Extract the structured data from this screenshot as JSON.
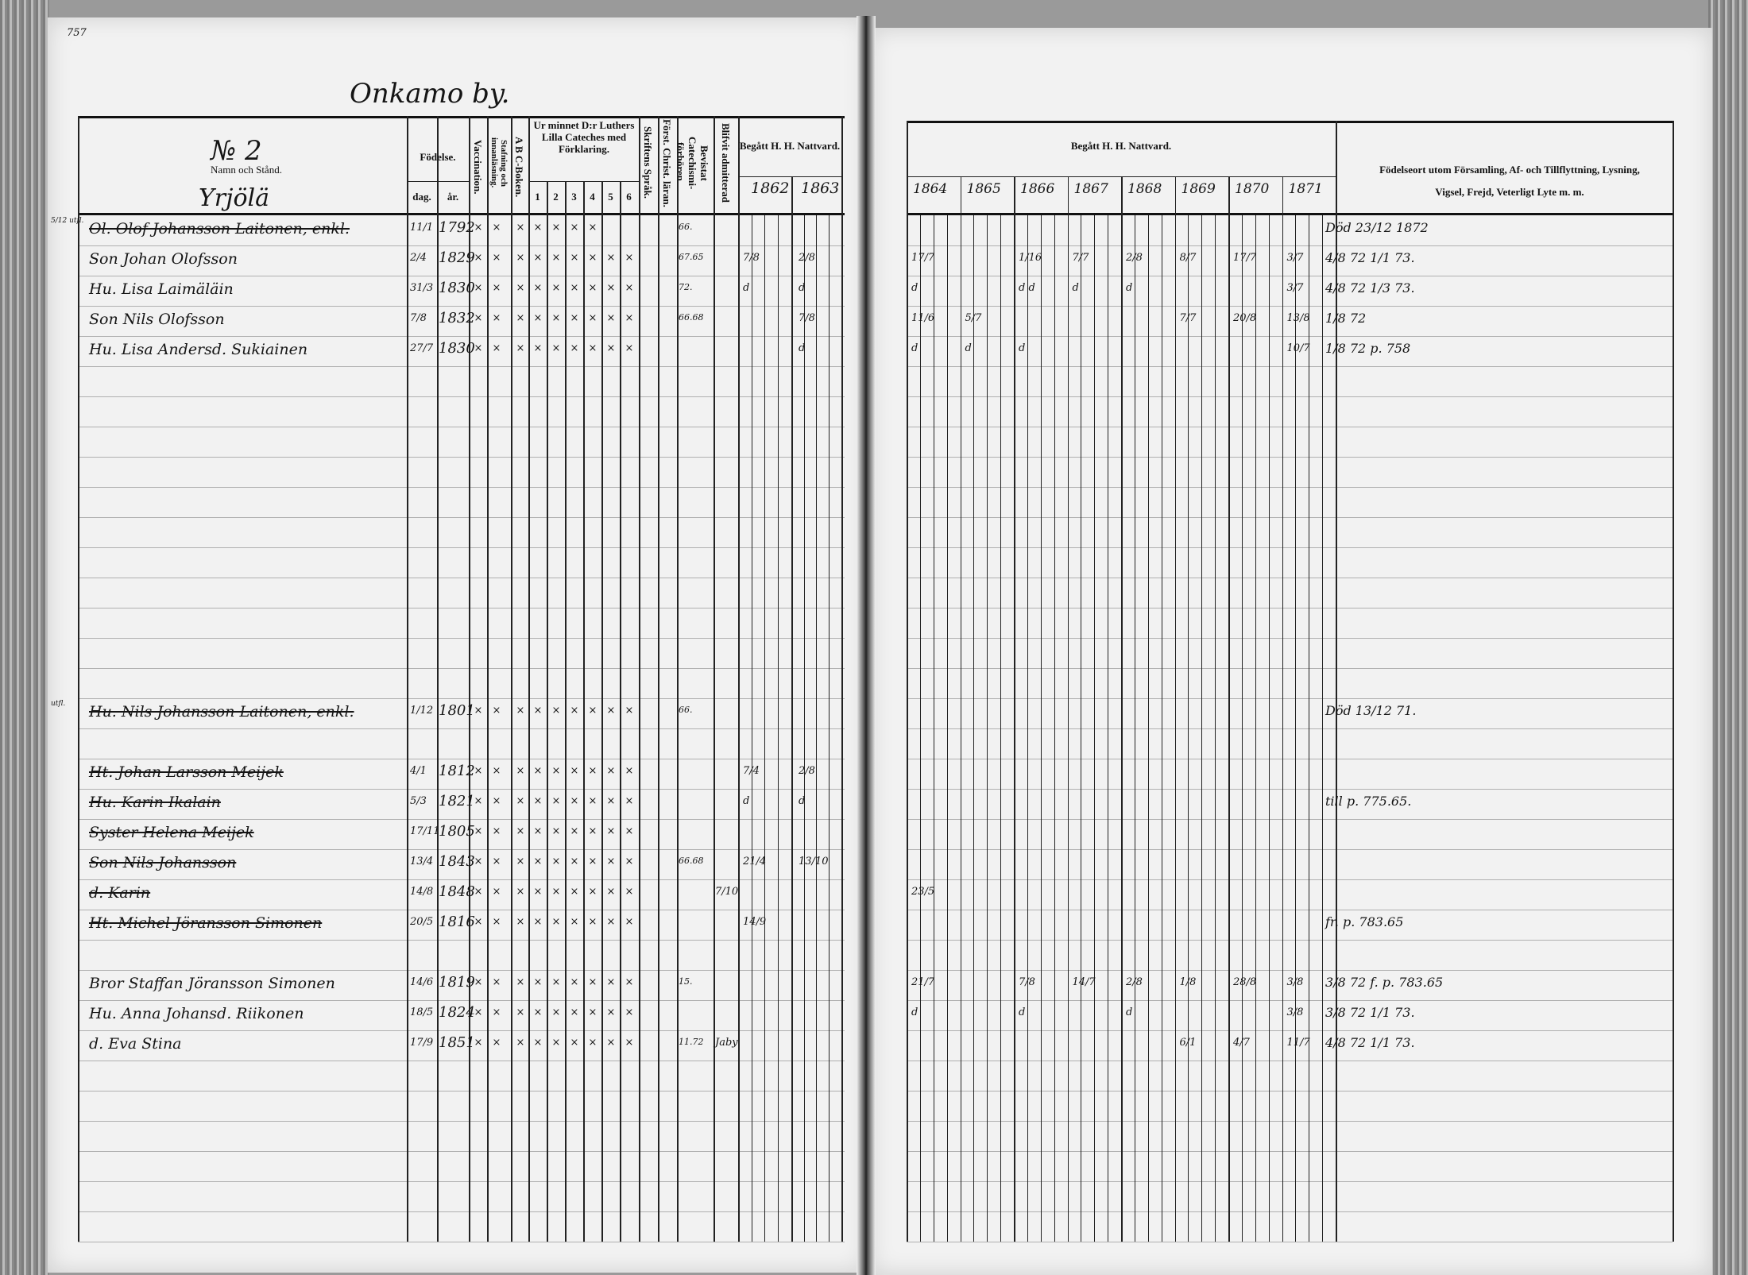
{
  "page_number": "757",
  "village_title": "Onkamo by.",
  "left_page": {
    "household_no": "№ 2",
    "farm_name": "Yrjölä",
    "headers": {
      "name": "Namn och Stånd.",
      "birth": "Födelse.",
      "birth_day": "dag.",
      "birth_year": "år.",
      "vaccination": "Vaccination.",
      "spelling": "Stafning och innanläsning.",
      "abc": "A B C-Boken.",
      "catechism": "Ur minnet D:r Luthers Lilla Cateches med Förklaring.",
      "catechism_parts": [
        "1",
        "2",
        "3",
        "4",
        "5",
        "6"
      ],
      "scripture": "Skriftens Språk.",
      "first_christ": "Först. Christ. läran.",
      "attended": "Bevistat Catechismi-förhören.",
      "admitted": "Blifvit admitterad",
      "communion": "Begått H. H. Nattvard.",
      "years": [
        "1862",
        "1863"
      ]
    },
    "rows": [
      {
        "row": 0,
        "name": "Ol. Olof Johansson Laitonen, enkl.",
        "struck": true,
        "day": "11/1",
        "year": "1792",
        "marks": "×××××××",
        "attended": "66.",
        "c1862": "",
        "c1863": "",
        "margin": "5/12 utfl."
      },
      {
        "row": 1,
        "name": "Son Johan Olofsson",
        "struck": false,
        "day": "2/4",
        "year": "1829",
        "marks": "×××××××××",
        "attended": "67.65",
        "c1862": "7/8",
        "c1863": "2/8",
        "margin": ""
      },
      {
        "row": 2,
        "name": "Hu. Lisa Laimäläin",
        "struck": false,
        "day": "31/3",
        "year": "1830",
        "marks": "×××××××××",
        "attended": "72.",
        "c1862": "d",
        "c1863": "d",
        "margin": ""
      },
      {
        "row": 3,
        "name": "Son Nils Olofsson",
        "struck": false,
        "day": "7/8",
        "year": "1832",
        "marks": "×××××××××",
        "attended": "66.68",
        "c1862": "",
        "c1863": "7/8",
        "margin": ""
      },
      {
        "row": 4,
        "name": "Hu. Lisa Andersd. Sukiainen",
        "struck": false,
        "day": "27/7",
        "year": "1830",
        "marks": "×××××××××",
        "attended": "",
        "c1862": "",
        "c1863": "d",
        "margin": ""
      },
      {
        "row": 16,
        "name": "Hu. Nils Johansson Laitonen, enkl.",
        "struck": true,
        "day": "1/12",
        "year": "1801",
        "marks": "×××××××××",
        "attended": "66.",
        "c1862": "",
        "c1863": "",
        "margin": "utfl."
      },
      {
        "row": 18,
        "name": "Ht. Johan Larsson Meijek",
        "struck": true,
        "day": "4/1",
        "year": "1812",
        "marks": "×××××××××",
        "attended": "",
        "c1862": "7/4",
        "c1863": "2/8",
        "margin": ""
      },
      {
        "row": 19,
        "name": "Hu. Karin Ikalain",
        "struck": true,
        "day": "5/3",
        "year": "1821",
        "marks": "×××××××××",
        "attended": "",
        "c1862": "d",
        "c1863": "d",
        "margin": ""
      },
      {
        "row": 20,
        "name": "Syster Helena Meijek",
        "struck": true,
        "day": "17/11",
        "year": "1805",
        "marks": "×××××××××",
        "attended": "",
        "c1862": "",
        "c1863": "",
        "margin": ""
      },
      {
        "row": 21,
        "name": "Son Nils Johansson",
        "struck": true,
        "day": "13/4",
        "year": "1843",
        "marks": "×××××××××",
        "attended": "66.68",
        "c1862": "21/4",
        "c1863": "13/10",
        "margin": ""
      },
      {
        "row": 22,
        "name": "d. Karin",
        "struck": true,
        "day": "14/8",
        "year": "1848",
        "marks": "×××××××××",
        "attended": "",
        "c1862": "",
        "c1863": "",
        "admitted": "7/10",
        "margin": ""
      },
      {
        "row": 23,
        "name": "Ht. Michel Jöransson Simonen",
        "struck": true,
        "day": "20/5",
        "year": "1816",
        "marks": "×××××××××",
        "attended": "",
        "c1862": "14/9",
        "c1863": "",
        "margin": ""
      },
      {
        "row": 25,
        "name": "Bror Staffan Jöransson Simonen",
        "struck": false,
        "day": "14/6",
        "year": "1819",
        "marks": "×××××××××",
        "attended": "15.",
        "c1862": "",
        "c1863": "",
        "margin": ""
      },
      {
        "row": 26,
        "name": "Hu. Anna Johansd. Riikonen",
        "struck": false,
        "day": "18/5",
        "year": "1824",
        "marks": "×××××××××",
        "attended": "",
        "c1862": "",
        "c1863": "",
        "margin": ""
      },
      {
        "row": 27,
        "name": "d. Eva Stina",
        "struck": false,
        "day": "17/9",
        "year": "1851",
        "marks": "×××××××××",
        "attended": "11.72",
        "c1862": "",
        "c1863": "",
        "admitted": "Jaby",
        "margin": ""
      }
    ]
  },
  "right_page": {
    "headers": {
      "communion": "Begått H. H. Nattvard.",
      "years": [
        "1864",
        "1865",
        "1866",
        "1867",
        "1868",
        "1869",
        "1870",
        "1871"
      ],
      "notes": "Födelseort utom Församling, Af- och Tillflyttning, Lysning, Vigsel, Frejd, Veterligt Lyte m. m."
    },
    "entries": [
      {
        "row": 1,
        "year": 0,
        "text": "17/7"
      },
      {
        "row": 1,
        "year": 2,
        "text": "1/16"
      },
      {
        "row": 1,
        "year": 3,
        "text": "7/7"
      },
      {
        "row": 1,
        "year": 4,
        "text": "2/8"
      },
      {
        "row": 1,
        "year": 5,
        "text": "8/7"
      },
      {
        "row": 1,
        "year": 6,
        "text": "17/7"
      },
      {
        "row": 1,
        "year": 7,
        "text": "3/7"
      },
      {
        "row": 2,
        "year": 0,
        "text": "d"
      },
      {
        "row": 2,
        "year": 2,
        "text": "d d"
      },
      {
        "row": 2,
        "year": 3,
        "text": "d"
      },
      {
        "row": 2,
        "year": 4,
        "text": "d"
      },
      {
        "row": 2,
        "year": 7,
        "text": "3/7"
      },
      {
        "row": 3,
        "year": 0,
        "text": "11/6"
      },
      {
        "row": 3,
        "year": 1,
        "text": "5/7"
      },
      {
        "row": 3,
        "year": 5,
        "text": "7/7"
      },
      {
        "row": 3,
        "year": 6,
        "text": "20/8"
      },
      {
        "row": 3,
        "year": 7,
        "text": "13/8"
      },
      {
        "row": 4,
        "year": 0,
        "text": "d"
      },
      {
        "row": 4,
        "year": 1,
        "text": "d"
      },
      {
        "row": 4,
        "year": 2,
        "text": "d"
      },
      {
        "row": 4,
        "year": 7,
        "text": "10/7"
      },
      {
        "row": 22,
        "year": 0,
        "text": "23/5"
      },
      {
        "row": 25,
        "year": 0,
        "text": "21/7"
      },
      {
        "row": 25,
        "year": 2,
        "text": "7/8"
      },
      {
        "row": 25,
        "year": 3,
        "text": "14/7"
      },
      {
        "row": 25,
        "year": 4,
        "text": "2/8"
      },
      {
        "row": 25,
        "year": 5,
        "text": "1/8"
      },
      {
        "row": 25,
        "year": 6,
        "text": "28/8"
      },
      {
        "row": 25,
        "year": 7,
        "text": "3/8"
      },
      {
        "row": 26,
        "year": 0,
        "text": "d"
      },
      {
        "row": 26,
        "year": 2,
        "text": "d"
      },
      {
        "row": 26,
        "year": 4,
        "text": "d"
      },
      {
        "row": 26,
        "year": 7,
        "text": "3/8"
      },
      {
        "row": 27,
        "year": 5,
        "text": "6/1"
      },
      {
        "row": 27,
        "year": 6,
        "text": "4/7"
      },
      {
        "row": 27,
        "year": 7,
        "text": "11/7"
      }
    ],
    "notes": [
      {
        "row": 0,
        "text": "Död 23/12 1872"
      },
      {
        "row": 1,
        "text": "4/8 72  1/1 73."
      },
      {
        "row": 2,
        "text": "4/8 72  1/3 73."
      },
      {
        "row": 3,
        "text": "1/8 72"
      },
      {
        "row": 4,
        "text": "1/8 72 p. 758"
      },
      {
        "row": 16,
        "text": "Död 13/12 71."
      },
      {
        "row": 19,
        "text": "till p. 775.65."
      },
      {
        "row": 23,
        "text": "fr. p. 783.65"
      },
      {
        "row": 25,
        "text": "3/8 72  f. p. 783.65"
      },
      {
        "row": 26,
        "text": "3/8 72  1/1 73."
      },
      {
        "row": 27,
        "text": "4/8 72  1/1 73."
      }
    ]
  }
}
